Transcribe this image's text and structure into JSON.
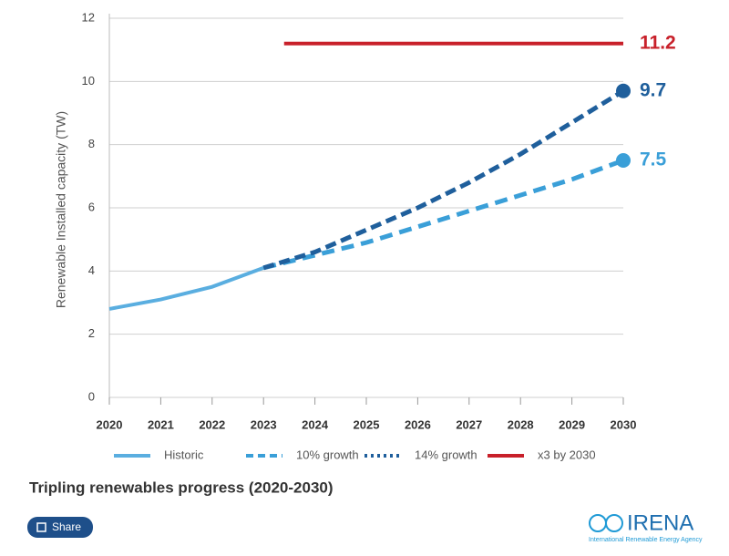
{
  "chart_data": {
    "type": "line",
    "title": "Tripling renewables progress (2020-2030)",
    "y_label": "Renewable Installed capacity (TW)",
    "xlim": [
      2020,
      2030
    ],
    "xticks": [
      2020,
      2021,
      2022,
      2023,
      2024,
      2025,
      2026,
      2027,
      2028,
      2029,
      2030
    ],
    "ylim": [
      0,
      12
    ],
    "yticks": [
      0,
      2,
      4,
      6,
      8,
      10,
      12
    ],
    "grid": true,
    "legend": "bottom",
    "series": [
      {
        "name": "Historic",
        "color": "#5aaee0",
        "dash": "solid",
        "end_label": false,
        "end_dot": false,
        "x": [
          2020,
          2021,
          2022,
          2023
        ],
        "values": [
          2.8,
          3.1,
          3.5,
          4.1
        ]
      },
      {
        "name": "10% growth",
        "color": "#3a9fd8",
        "dash": "dashed",
        "end_label": true,
        "end_dot": true,
        "x": [
          2023,
          2024,
          2025,
          2026,
          2027,
          2028,
          2029,
          2030
        ],
        "values": [
          4.1,
          4.5,
          4.9,
          5.4,
          5.9,
          6.4,
          6.9,
          7.5
        ]
      },
      {
        "name": "14% growth",
        "color": "#1f5f9c",
        "dash": "dotted",
        "end_label": true,
        "end_dot": true,
        "x": [
          2023,
          2024,
          2025,
          2026,
          2027,
          2028,
          2029,
          2030
        ],
        "values": [
          4.1,
          4.6,
          5.3,
          6.0,
          6.8,
          7.7,
          8.7,
          9.7
        ]
      },
      {
        "name": "x3 by 2030",
        "color": "#c8202a",
        "dash": "solid",
        "end_label": true,
        "end_dot": false,
        "x": [
          2023.4,
          2030
        ],
        "values": [
          11.2,
          11.2
        ]
      }
    ]
  },
  "footer": {
    "share": "Share",
    "logo": "IRENA",
    "logo_subtitle": "International Renewable Energy Agency"
  }
}
